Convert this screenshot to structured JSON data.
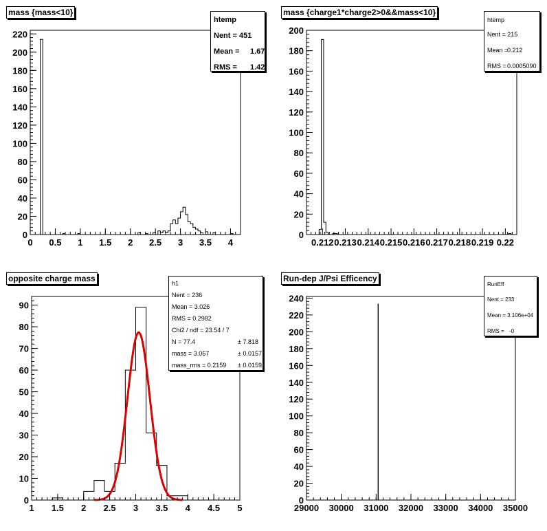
{
  "chart_data": [
    {
      "type": "bar",
      "title": "mass {mass<10}",
      "xlim": [
        0,
        4.2
      ],
      "ylim": [
        0,
        224
      ],
      "x_ticks": [
        "0",
        "0.5",
        "1",
        "1.5",
        "2",
        "2.5",
        "3",
        "3.5",
        "4"
      ],
      "y_ticks": [
        "0",
        "20",
        "40",
        "60",
        "80",
        "100",
        "120",
        "140",
        "160",
        "180",
        "200",
        "220"
      ],
      "bin_edges": [
        0.2,
        0.25
      ],
      "bins": [
        {
          "x0": 0.2,
          "x1": 0.25,
          "y": 214
        },
        {
          "x0": 0.65,
          "x1": 0.7,
          "y": 1
        },
        {
          "x0": 0.95,
          "x1": 1.0,
          "y": 1
        },
        {
          "x0": 2.15,
          "x1": 2.2,
          "y": 2
        },
        {
          "x0": 2.3,
          "x1": 2.35,
          "y": 1
        },
        {
          "x0": 2.45,
          "x1": 2.5,
          "y": 2
        },
        {
          "x0": 2.55,
          "x1": 2.6,
          "y": 4
        },
        {
          "x0": 2.6,
          "x1": 2.65,
          "y": 2
        },
        {
          "x0": 2.65,
          "x1": 2.7,
          "y": 4
        },
        {
          "x0": 2.7,
          "x1": 2.75,
          "y": 2
        },
        {
          "x0": 2.75,
          "x1": 2.8,
          "y": 4
        },
        {
          "x0": 2.8,
          "x1": 2.85,
          "y": 12
        },
        {
          "x0": 2.85,
          "x1": 2.9,
          "y": 16
        },
        {
          "x0": 2.9,
          "x1": 2.95,
          "y": 12
        },
        {
          "x0": 2.95,
          "x1": 3.0,
          "y": 18
        },
        {
          "x0": 3.0,
          "x1": 3.05,
          "y": 25
        },
        {
          "x0": 3.05,
          "x1": 3.1,
          "y": 30
        },
        {
          "x0": 3.1,
          "x1": 3.15,
          "y": 22
        },
        {
          "x0": 3.15,
          "x1": 3.2,
          "y": 14
        },
        {
          "x0": 3.2,
          "x1": 3.25,
          "y": 12
        },
        {
          "x0": 3.25,
          "x1": 3.3,
          "y": 8
        },
        {
          "x0": 3.3,
          "x1": 3.35,
          "y": 6
        },
        {
          "x0": 3.35,
          "x1": 3.4,
          "y": 4
        },
        {
          "x0": 3.4,
          "x1": 3.45,
          "y": 2
        },
        {
          "x0": 3.5,
          "x1": 3.55,
          "y": 3
        },
        {
          "x0": 3.65,
          "x1": 3.7,
          "y": 2
        },
        {
          "x0": 4.0,
          "x1": 4.05,
          "y": 1
        }
      ],
      "stats": {
        "title": "htemp",
        "rows": [
          {
            "label": "Nent = 451",
            "value": ""
          },
          {
            "label": "Mean  =",
            "value": "1.675"
          },
          {
            "label": "RMS   =",
            "value": "1.42"
          }
        ]
      }
    },
    {
      "type": "bar",
      "title": "mass {charge1*charge2>0&&mass<10}",
      "xlim": [
        0.2113,
        0.2205
      ],
      "ylim": [
        0,
        200
      ],
      "x_ticks": [
        "0.212",
        "0.213",
        "0.214",
        "0.215",
        "0.216",
        "0.217",
        "0.218",
        "0.219",
        "0.22"
      ],
      "y_ticks": [
        "0",
        "20",
        "40",
        "60",
        "80",
        "100",
        "120",
        "140",
        "160",
        "180",
        "200"
      ],
      "bins": [
        {
          "x0": 0.21185,
          "x1": 0.21195,
          "y": 5
        },
        {
          "x0": 0.21195,
          "x1": 0.21205,
          "y": 191
        },
        {
          "x0": 0.21205,
          "x1": 0.21215,
          "y": 12
        },
        {
          "x0": 0.21215,
          "x1": 0.21225,
          "y": 2
        },
        {
          "x0": 0.21245,
          "x1": 0.21255,
          "y": 1
        },
        {
          "x0": 0.21255,
          "x1": 0.21265,
          "y": 1
        },
        {
          "x0": 0.22015,
          "x1": 0.22025,
          "y": 1
        }
      ],
      "stats": {
        "title": "htemp",
        "rows": [
          {
            "label": "Nent = 215",
            "value": ""
          },
          {
            "label": "Mean  =",
            "value": "0.212"
          },
          {
            "label": "RMS   =",
            "value": "0.0005090"
          }
        ]
      }
    },
    {
      "type": "bar",
      "title": "opposite charge mass",
      "xlim": [
        1,
        5
      ],
      "ylim": [
        0,
        94
      ],
      "x_ticks": [
        "1",
        "1.5",
        "2",
        "2.5",
        "3",
        "3.5",
        "4",
        "4.5",
        "5"
      ],
      "y_ticks": [
        "0",
        "10",
        "20",
        "30",
        "40",
        "50",
        "60",
        "70",
        "80",
        "90"
      ],
      "bins": [
        {
          "x0": 1.4,
          "x1": 1.6,
          "y": 1
        },
        {
          "x0": 2.0,
          "x1": 2.2,
          "y": 4
        },
        {
          "x0": 2.2,
          "x1": 2.4,
          "y": 9
        },
        {
          "x0": 2.4,
          "x1": 2.6,
          "y": 4
        },
        {
          "x0": 2.6,
          "x1": 2.8,
          "y": 17
        },
        {
          "x0": 2.8,
          "x1": 3.0,
          "y": 60
        },
        {
          "x0": 3.0,
          "x1": 3.2,
          "y": 89
        },
        {
          "x0": 3.2,
          "x1": 3.4,
          "y": 31
        },
        {
          "x0": 3.4,
          "x1": 3.6,
          "y": 16
        },
        {
          "x0": 3.6,
          "x1": 3.8,
          "y": 2
        },
        {
          "x0": 3.8,
          "x1": 4.0,
          "y": 2
        }
      ],
      "fit": {
        "type": "gaussian",
        "N": 77.4,
        "mean": 3.057,
        "sigma": 0.2159,
        "color": "#dd0000",
        "x_range": [
          2.2,
          3.9
        ]
      },
      "stats": {
        "title": "h1",
        "rows": [
          {
            "label": "Nent = 236",
            "value": ""
          },
          {
            "label": "Mean  = 3.026",
            "value": ""
          },
          {
            "label": "RMS   = 0.2982",
            "value": ""
          },
          {
            "label": "Chi2 / ndf = 23.54 / 7",
            "value": ""
          },
          {
            "label": "N      = 77.4",
            "value": "± 7.818"
          },
          {
            "label": "mass     = 3.057",
            "value": "± 0.0157"
          },
          {
            "label": "mass_rms = 0.2159",
            "value": "± 0.0159"
          }
        ]
      }
    },
    {
      "type": "bar",
      "title": "Run-dep J/Psi Efficency",
      "xlim": [
        29000,
        35000
      ],
      "ylim": [
        0,
        242
      ],
      "x_ticks": [
        "29000",
        "30000",
        "31000",
        "32000",
        "33000",
        "34000",
        "35000"
      ],
      "y_ticks": [
        "0",
        "20",
        "40",
        "60",
        "80",
        "100",
        "120",
        "140",
        "160",
        "180",
        "200",
        "220",
        "240"
      ],
      "bins": [
        {
          "x0": 31055,
          "x1": 31062,
          "y": 233
        }
      ],
      "stats": {
        "title": "RunEff",
        "rows": [
          {
            "label": "Nent = 233",
            "value": ""
          },
          {
            "label": "Mean  = 3.106e+04",
            "value": ""
          },
          {
            "label": "RMS   =",
            "value": "-0"
          }
        ]
      }
    }
  ]
}
